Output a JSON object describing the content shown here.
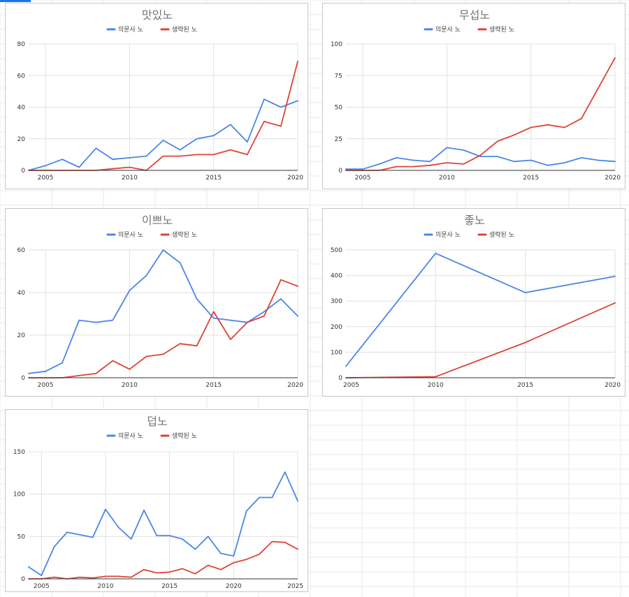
{
  "colors": {
    "blue": "#4a86e8",
    "red": "#db4437"
  },
  "legend": [
    "의문사 노",
    "생략된 노"
  ],
  "chart_data": [
    {
      "type": "line",
      "title": "맛있노",
      "xlim": [
        2004,
        2020
      ],
      "ylim": [
        0,
        80
      ],
      "yticks": [
        0,
        20,
        40,
        60,
        80
      ],
      "xticks": [
        2005,
        2010,
        2015,
        2020
      ],
      "series": [
        {
          "name": "의문사 노",
          "color": "#4a86e8",
          "points": [
            [
              2004,
              0
            ],
            [
              2005,
              3
            ],
            [
              2006,
              7
            ],
            [
              2007,
              2
            ],
            [
              2008,
              14
            ],
            [
              2009,
              7
            ],
            [
              2010,
              8
            ],
            [
              2011,
              9
            ],
            [
              2012,
              19
            ],
            [
              2013,
              13
            ],
            [
              2014,
              20
            ],
            [
              2015,
              22
            ],
            [
              2016,
              29
            ],
            [
              2017,
              18
            ],
            [
              2018,
              45
            ],
            [
              2019,
              40
            ],
            [
              2020,
              44
            ]
          ]
        },
        {
          "name": "생략된 노",
          "color": "#db4437",
          "points": [
            [
              2004,
              0
            ],
            [
              2005,
              0
            ],
            [
              2006,
              0
            ],
            [
              2007,
              0
            ],
            [
              2008,
              0
            ],
            [
              2009,
              1
            ],
            [
              2010,
              2
            ],
            [
              2011,
              0
            ],
            [
              2012,
              9
            ],
            [
              2013,
              9
            ],
            [
              2014,
              10
            ],
            [
              2015,
              10
            ],
            [
              2016,
              13
            ],
            [
              2017,
              10
            ],
            [
              2018,
              31
            ],
            [
              2019,
              28
            ],
            [
              2020,
              69
            ]
          ]
        }
      ]
    },
    {
      "type": "line",
      "title": "무섭노",
      "xlim": [
        2004,
        2020
      ],
      "ylim": [
        0,
        100
      ],
      "yticks": [
        0,
        25,
        50,
        75,
        100
      ],
      "xticks": [
        2005,
        2010,
        2015,
        2020
      ],
      "series": [
        {
          "name": "의문사 노",
          "color": "#4a86e8",
          "points": [
            [
              2004,
              1
            ],
            [
              2005,
              1
            ],
            [
              2006,
              5
            ],
            [
              2007,
              10
            ],
            [
              2008,
              8
            ],
            [
              2009,
              7
            ],
            [
              2010,
              18
            ],
            [
              2011,
              16
            ],
            [
              2012,
              11
            ],
            [
              2013,
              11
            ],
            [
              2014,
              7
            ],
            [
              2015,
              8
            ],
            [
              2016,
              4
            ],
            [
              2017,
              6
            ],
            [
              2018,
              10
            ],
            [
              2019,
              8
            ],
            [
              2020,
              7
            ]
          ]
        },
        {
          "name": "생략된 노",
          "color": "#db4437",
          "points": [
            [
              2004,
              0
            ],
            [
              2005,
              0
            ],
            [
              2006,
              0
            ],
            [
              2007,
              3
            ],
            [
              2008,
              3
            ],
            [
              2009,
              4
            ],
            [
              2010,
              6
            ],
            [
              2011,
              5
            ],
            [
              2012,
              12
            ],
            [
              2013,
              23
            ],
            [
              2014,
              28
            ],
            [
              2015,
              34
            ],
            [
              2016,
              36
            ],
            [
              2017,
              34
            ],
            [
              2018,
              41
            ],
            [
              2019,
              65
            ],
            [
              2020,
              89
            ]
          ]
        }
      ]
    },
    {
      "type": "line",
      "title": "이쁘노",
      "xlim": [
        2004,
        2020
      ],
      "ylim": [
        0,
        60
      ],
      "yticks": [
        0,
        20,
        40,
        60
      ],
      "xticks": [
        2005,
        2010,
        2015,
        2020
      ],
      "series": [
        {
          "name": "의문사 노",
          "color": "#4a86e8",
          "points": [
            [
              2004,
              2
            ],
            [
              2005,
              3
            ],
            [
              2006,
              7
            ],
            [
              2007,
              27
            ],
            [
              2008,
              26
            ],
            [
              2009,
              27
            ],
            [
              2010,
              41
            ],
            [
              2011,
              48
            ],
            [
              2012,
              60
            ],
            [
              2013,
              54
            ],
            [
              2014,
              37
            ],
            [
              2015,
              28
            ],
            [
              2016,
              27
            ],
            [
              2017,
              26
            ],
            [
              2018,
              31
            ],
            [
              2019,
              37
            ],
            [
              2020,
              29
            ]
          ]
        },
        {
          "name": "생략된 노",
          "color": "#db4437",
          "points": [
            [
              2004,
              0
            ],
            [
              2005,
              0
            ],
            [
              2006,
              0
            ],
            [
              2007,
              1
            ],
            [
              2008,
              2
            ],
            [
              2009,
              8
            ],
            [
              2010,
              4
            ],
            [
              2011,
              10
            ],
            [
              2012,
              11
            ],
            [
              2013,
              16
            ],
            [
              2014,
              15
            ],
            [
              2015,
              31
            ],
            [
              2016,
              18
            ],
            [
              2017,
              26
            ],
            [
              2018,
              29
            ],
            [
              2019,
              46
            ],
            [
              2020,
              43
            ]
          ]
        }
      ]
    },
    {
      "type": "line",
      "title": "좋노",
      "xlim": [
        2005,
        2020
      ],
      "ylim": [
        0,
        500
      ],
      "yticks": [
        0,
        100,
        200,
        300,
        400,
        500
      ],
      "xticks": [
        2005,
        2010,
        2015,
        2020
      ],
      "series": [
        {
          "name": "의문사 노",
          "color": "#4a86e8",
          "points": [
            [
              2005,
              45
            ],
            [
              2010,
              487
            ],
            [
              2015,
              333
            ],
            [
              2020,
              397
            ]
          ]
        },
        {
          "name": "생략된 노",
          "color": "#db4437",
          "points": [
            [
              2005,
              0
            ],
            [
              2010,
              4
            ],
            [
              2015,
              138
            ],
            [
              2020,
              293
            ]
          ]
        }
      ]
    },
    {
      "type": "line",
      "title": "덥노",
      "xlim": [
        2004,
        2025
      ],
      "ylim": [
        0,
        150
      ],
      "yticks": [
        0,
        50,
        100,
        150
      ],
      "xticks": [
        2005,
        2010,
        2015,
        2020,
        2025
      ],
      "series": [
        {
          "name": "의문사 노",
          "color": "#4a86e8",
          "points": [
            [
              2004,
              14
            ],
            [
              2005,
              4
            ],
            [
              2006,
              38
            ],
            [
              2007,
              55
            ],
            [
              2008,
              52
            ],
            [
              2009,
              49
            ],
            [
              2010,
              82
            ],
            [
              2011,
              61
            ],
            [
              2012,
              47
            ],
            [
              2013,
              81
            ],
            [
              2014,
              51
            ],
            [
              2015,
              51
            ],
            [
              2016,
              47
            ],
            [
              2017,
              35
            ],
            [
              2018,
              50
            ],
            [
              2019,
              30
            ],
            [
              2020,
              27
            ],
            [
              2021,
              80
            ],
            [
              2022,
              96
            ],
            [
              2023,
              96
            ],
            [
              2024,
              126
            ],
            [
              2025,
              92
            ]
          ]
        },
        {
          "name": "생략된 노",
          "color": "#db4437",
          "points": [
            [
              2004,
              0
            ],
            [
              2005,
              0
            ],
            [
              2006,
              2
            ],
            [
              2007,
              0
            ],
            [
              2008,
              2
            ],
            [
              2009,
              1
            ],
            [
              2010,
              3
            ],
            [
              2011,
              3
            ],
            [
              2012,
              2
            ],
            [
              2013,
              11
            ],
            [
              2014,
              7
            ],
            [
              2015,
              8
            ],
            [
              2016,
              12
            ],
            [
              2017,
              6
            ],
            [
              2018,
              16
            ],
            [
              2019,
              11
            ],
            [
              2020,
              19
            ],
            [
              2021,
              23
            ],
            [
              2022,
              29
            ],
            [
              2023,
              44
            ],
            [
              2024,
              43
            ],
            [
              2025,
              35
            ]
          ]
        }
      ]
    }
  ]
}
